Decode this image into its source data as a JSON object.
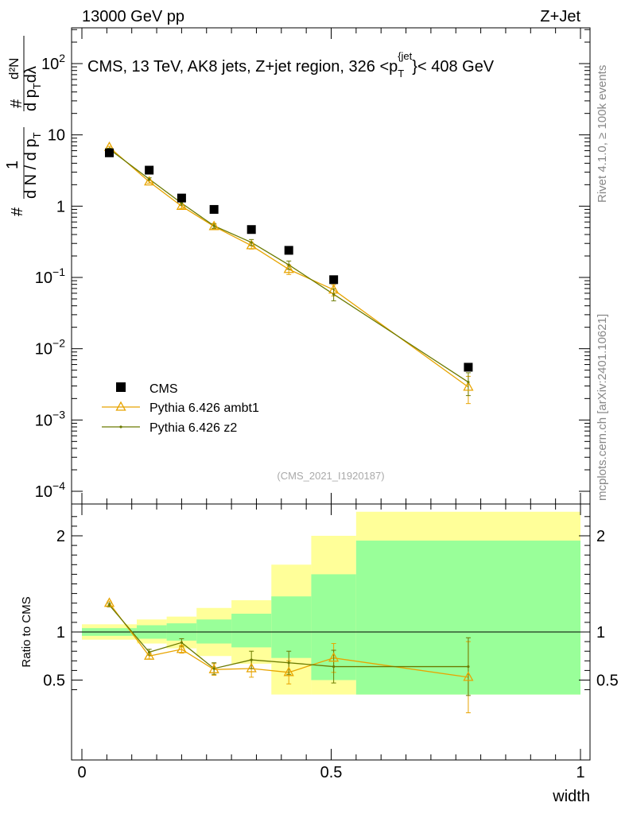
{
  "header": {
    "left": "13000 GeV pp",
    "right": "Z+Jet"
  },
  "side": {
    "top": "Rivet 4.1.0, ≥ 100k events",
    "bottom": "mcplots.cern.ch [arXiv:2401.10621]"
  },
  "colors": {
    "cms": "#000000",
    "ambt1": "#e8a400",
    "z2": "#6b7a00",
    "yellow_band": "#ffff99",
    "green_band": "#99ff99"
  },
  "chart_data": [
    {
      "type": "scatter",
      "scale": "log",
      "title": "CMS, 13 TeV, AK8 jets, Z+jet region, 326 <p_T^{jet}< 408 GeV",
      "title_parts": {
        "pre": "CMS, 13 TeV, AK8 jets, Z+jet region, 326 <p",
        "sub": "T",
        "sup": "{jet",
        "sup_close": "}",
        "post": "< 408 GeV"
      },
      "ylabel": "1/N dN/dp_T d²N/dp_T dλ",
      "ylabel_parts": {
        "num1": "1",
        "den1": "d N / d p",
        "den1_sub": "T",
        "num2_hash": "#",
        "hash": "#",
        "num2": "d²N",
        "den2": "d p",
        "den2_sub": "T",
        "den2_post": "dλ"
      },
      "ylim": [
        0.0001,
        300
      ],
      "yticks": [
        {
          "value": 100,
          "label": "10",
          "exp": "2"
        },
        {
          "value": 10,
          "label": "10",
          "exp": ""
        },
        {
          "value": 1,
          "label": "1",
          "exp": ""
        },
        {
          "value": 0.1,
          "label": "10",
          "exp": "−1"
        },
        {
          "value": 0.01,
          "label": "10",
          "exp": "−2"
        },
        {
          "value": 0.001,
          "label": "10",
          "exp": "−3"
        },
        {
          "value": 0.0001,
          "label": "10",
          "exp": "−4"
        }
      ],
      "x": [
        0.055,
        0.135,
        0.2,
        0.265,
        0.34,
        0.415,
        0.505,
        0.775
      ],
      "series": [
        {
          "name": "CMS",
          "marker": "square",
          "values": [
            5.6,
            3.2,
            1.3,
            0.9,
            0.47,
            0.24,
            0.093,
            0.0055
          ]
        },
        {
          "name": "Pythia 6.426 ambt1",
          "marker": "triangle",
          "values": [
            6.7,
            2.2,
            1.0,
            0.52,
            0.28,
            0.13,
            0.067,
            0.0029
          ],
          "errors": [
            0.2,
            0.1,
            0.07,
            0.04,
            0.03,
            0.02,
            0.012,
            0.0012
          ]
        },
        {
          "name": "Pythia 6.426 z2",
          "marker": "dot",
          "values": [
            6.3,
            2.4,
            1.1,
            0.53,
            0.31,
            0.15,
            0.058,
            0.0034
          ],
          "errors": [
            0.2,
            0.1,
            0.07,
            0.04,
            0.03,
            0.02,
            0.011,
            0.0012
          ]
        }
      ],
      "legend": [
        "CMS",
        "Pythia 6.426 ambt1",
        "Pythia 6.426 z2"
      ],
      "annotation": "(CMS_2021_I1920187)"
    },
    {
      "type": "line",
      "ylabel": "Ratio to CMS",
      "xlabel": "width",
      "xlim": [
        0,
        1
      ],
      "ylim": [
        0.35,
        2.25
      ],
      "xticks": [
        {
          "value": 0,
          "label": "0"
        },
        {
          "value": 0.5,
          "label": "0.5"
        },
        {
          "value": 1,
          "label": "1"
        }
      ],
      "yticks": [
        {
          "value": 0.5,
          "label": "0.5"
        },
        {
          "value": 1,
          "label": "1"
        },
        {
          "value": 2,
          "label": "2"
        }
      ],
      "bins": [
        {
          "lo": 0.0,
          "hi": 0.11,
          "green": [
            0.96,
            1.04
          ],
          "yellow": [
            0.92,
            1.08
          ]
        },
        {
          "lo": 0.11,
          "hi": 0.17,
          "green": [
            0.93,
            1.07
          ],
          "yellow": [
            0.88,
            1.13
          ]
        },
        {
          "lo": 0.17,
          "hi": 0.23,
          "green": [
            0.91,
            1.09
          ],
          "yellow": [
            0.83,
            1.16
          ]
        },
        {
          "lo": 0.23,
          "hi": 0.3,
          "green": [
            0.88,
            1.13
          ],
          "yellow": [
            0.75,
            1.25
          ]
        },
        {
          "lo": 0.3,
          "hi": 0.38,
          "green": [
            0.84,
            1.19
          ],
          "yellow": [
            0.67,
            1.33
          ]
        },
        {
          "lo": 0.38,
          "hi": 0.46,
          "green": [
            0.73,
            1.37
          ],
          "yellow": [
            0.35,
            1.7
          ]
        },
        {
          "lo": 0.46,
          "hi": 0.55,
          "green": [
            0.5,
            1.6
          ],
          "yellow": [
            0.35,
            2.0
          ]
        },
        {
          "lo": 0.55,
          "hi": 1.0,
          "green": [
            0.35,
            1.95
          ],
          "yellow": [
            0.35,
            2.25
          ]
        }
      ],
      "x": [
        0.055,
        0.135,
        0.2,
        0.265,
        0.34,
        0.415,
        0.505,
        0.775
      ],
      "series": [
        {
          "name": "Pythia 6.426 ambt1",
          "values": [
            1.3,
            0.75,
            0.82,
            0.61,
            0.62,
            0.58,
            0.73,
            0.53
          ],
          "errors": [
            0.02,
            0.03,
            0.04,
            0.06,
            0.09,
            0.12,
            0.15,
            0.37
          ]
        },
        {
          "name": "Pythia 6.426 z2",
          "values": [
            1.28,
            0.79,
            0.89,
            0.62,
            0.71,
            0.68,
            0.64,
            0.64
          ],
          "errors": [
            0.02,
            0.03,
            0.04,
            0.06,
            0.09,
            0.12,
            0.17,
            0.3
          ]
        }
      ]
    }
  ]
}
